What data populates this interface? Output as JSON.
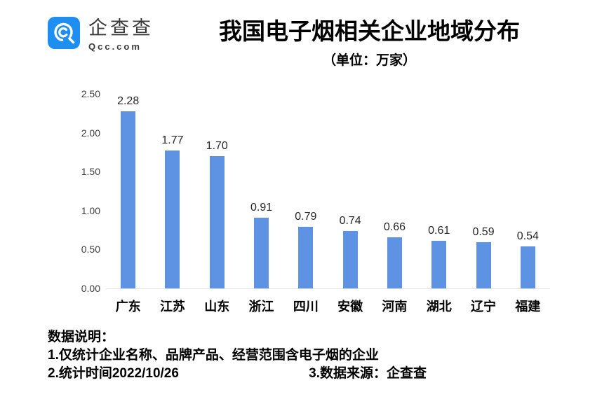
{
  "logo": {
    "name": "企查查",
    "domain": "Qcc.com",
    "brand_color": "#1e8ff0"
  },
  "header": {
    "title": "我国电子烟相关企业地域分布",
    "subtitle": "（单位：万家）"
  },
  "chart_data": {
    "type": "bar",
    "title": "我国电子烟相关企业地域分布",
    "subtitle": "（单位：万家）",
    "unit": "万家",
    "categories": [
      "广东",
      "江苏",
      "山东",
      "浙江",
      "四川",
      "安徽",
      "河南",
      "湖北",
      "辽宁",
      "福建"
    ],
    "values": [
      2.28,
      1.77,
      1.7,
      0.91,
      0.79,
      0.74,
      0.66,
      0.61,
      0.59,
      0.54
    ],
    "value_labels": [
      "2.28",
      "1.77",
      "1.70",
      "0.91",
      "0.79",
      "0.74",
      "0.66",
      "0.61",
      "0.59",
      "0.54"
    ],
    "y_ticks": [
      0.0,
      0.5,
      1.0,
      1.5,
      2.0,
      2.5
    ],
    "ylim": [
      0,
      2.5
    ],
    "xlabel": "",
    "ylabel": "",
    "grid": false,
    "legend_position": "none",
    "bar_color": "#5e93e3",
    "axis_line_color": "#e4e4e4"
  },
  "footer": {
    "heading": "数据说明：",
    "note1": "1.仅统计企业名称、品牌产品、经营范围含电子烟的企业",
    "note2": "2.统计时间2022/10/26",
    "note3": "3.数据来源：企查查"
  }
}
